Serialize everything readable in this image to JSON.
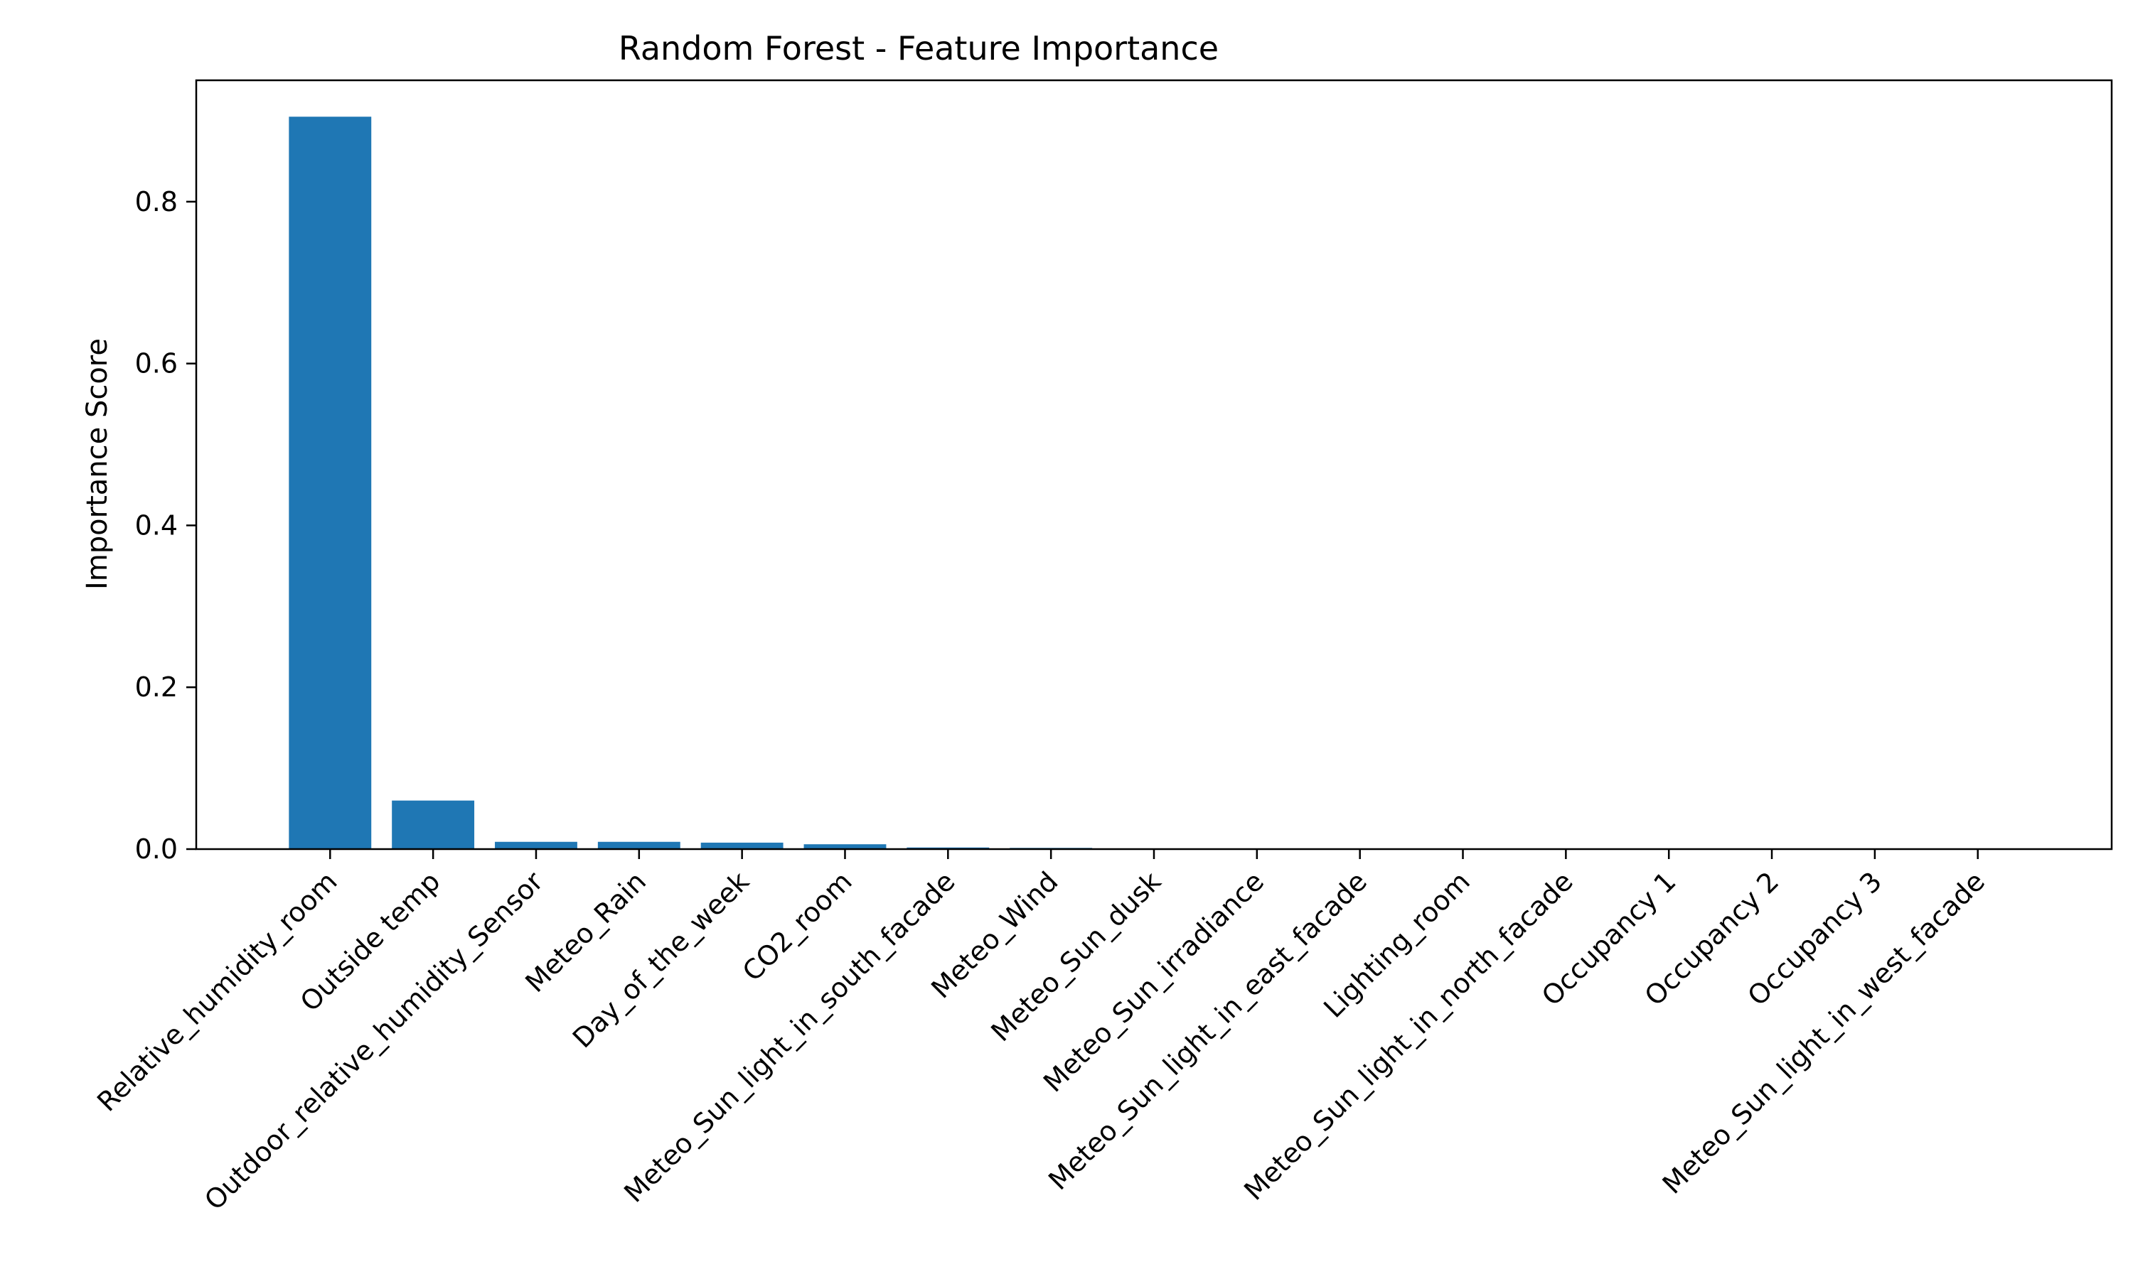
{
  "chart_data": {
    "type": "bar",
    "title": "Random Forest - Feature Importance",
    "xlabel": "",
    "ylabel": "Importance Score",
    "categories": [
      "Relative_humidity_room",
      "Outside temp",
      "Outdoor_relative_humidity_Sensor",
      "Meteo_Rain",
      "Day_of_the_week",
      "CO2_room",
      "Meteo_Sun_light_in_south_facade",
      "Meteo_Wind",
      "Meteo_Sun_dusk",
      "Meteo_Sun_irradiance",
      "Meteo_Sun_light_in_east_facade",
      "Lighting_room",
      "Meteo_Sun_light_in_north_facade",
      "Occupancy 1",
      "Occupancy 2",
      "Occupancy 3",
      "Meteo_Sun_light_in_west_facade"
    ],
    "values": [
      0.905,
      0.06,
      0.009,
      0.009,
      0.008,
      0.006,
      0.002,
      0.0015,
      0.0004,
      0.0003,
      0.0002,
      0.0001,
      0.0001,
      5e-05,
      4e-05,
      3e-05,
      2e-05
    ],
    "ylim": [
      0,
      0.95
    ],
    "yticks": [
      0.0,
      0.2,
      0.4,
      0.6,
      0.8
    ],
    "ytick_labels": [
      "0.0",
      "0.2",
      "0.4",
      "0.6",
      "0.8"
    ],
    "grid": false,
    "legend": "none",
    "bar_color": "#1f77b4"
  }
}
